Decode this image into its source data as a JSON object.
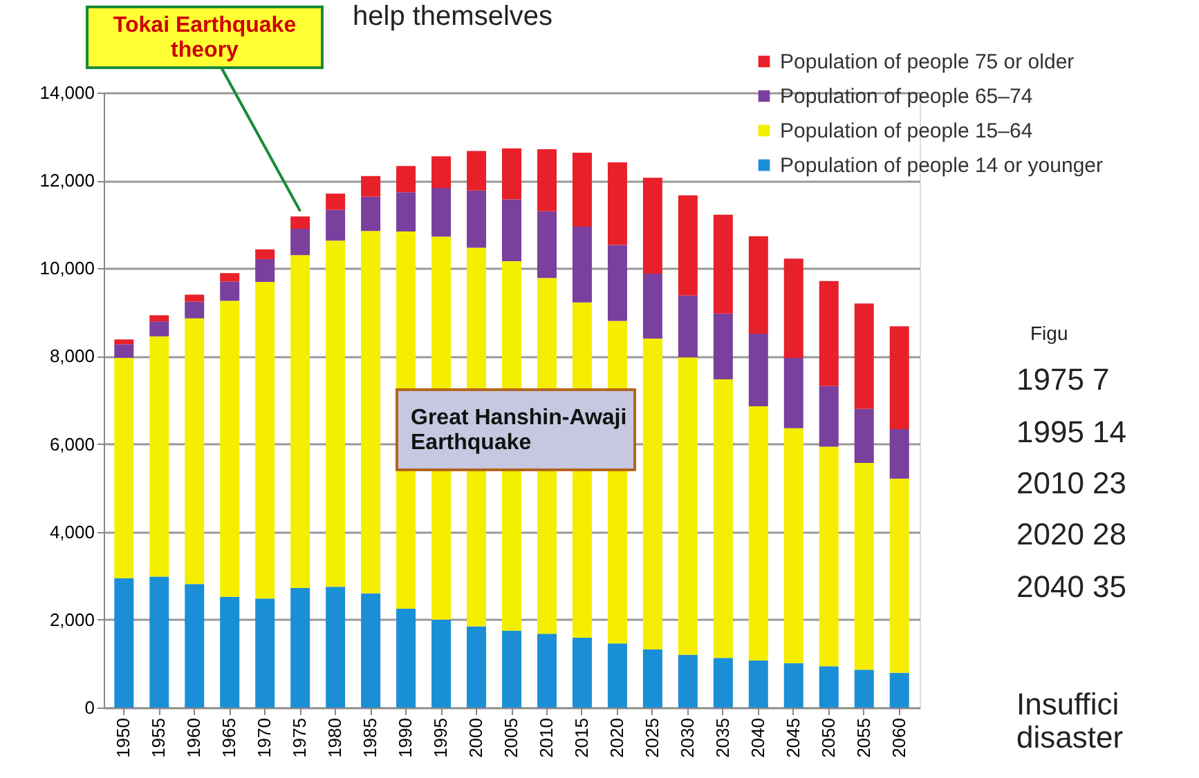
{
  "chart_data": {
    "type": "bar",
    "stacked": true,
    "title": "help themselves",
    "categories": [
      "1950",
      "1955",
      "1960",
      "1965",
      "1970",
      "1975",
      "1980",
      "1985",
      "1990",
      "1995",
      "2000",
      "2005",
      "2010",
      "2015",
      "2020",
      "2025",
      "2030",
      "2035",
      "2040",
      "2045",
      "2050",
      "2055",
      "2060"
    ],
    "series": [
      {
        "name": "Population of people 14 or younger",
        "color": "#1a8fd8",
        "values": [
          2940,
          2980,
          2810,
          2520,
          2480,
          2720,
          2750,
          2600,
          2250,
          2000,
          1850,
          1750,
          1680,
          1590,
          1460,
          1320,
          1200,
          1130,
          1070,
          1010,
          940,
          860,
          790
        ]
      },
      {
        "name": "Population of people 15–64",
        "color": "#f5ee00",
        "values": [
          5020,
          5470,
          6050,
          6740,
          7210,
          7580,
          7880,
          8250,
          8590,
          8720,
          8620,
          8410,
          8100,
          7630,
          7340,
          7080,
          6770,
          6340,
          5790,
          5350,
          5000,
          4710,
          4420
        ]
      },
      {
        "name": "Population of people 65–74",
        "color": "#7b3f9e",
        "values": [
          310,
          340,
          380,
          440,
          520,
          600,
          700,
          780,
          890,
          1110,
          1300,
          1410,
          1520,
          1730,
          1730,
          1480,
          1410,
          1500,
          1650,
          1600,
          1380,
          1230,
          1130
        ]
      },
      {
        "name": "Population of people 75 or older",
        "color": "#e8202a",
        "values": [
          110,
          140,
          160,
          190,
          220,
          280,
          370,
          470,
          600,
          720,
          900,
          1160,
          1410,
          1680,
          1880,
          2180,
          2280,
          2250,
          2220,
          2260,
          2390,
          2400,
          2340
        ]
      }
    ],
    "ylim": [
      0,
      14000
    ],
    "yticks": [
      0,
      {
        "value": 2000,
        "label": "2,000"
      },
      {
        "value": 4000,
        "label": "4,000"
      },
      {
        "value": 6000,
        "label": "6,000"
      },
      {
        "value": 8000,
        "label": "8,000"
      },
      {
        "value": 10000,
        "label": "10,000"
      },
      {
        "value": 12000,
        "label": "12,000"
      },
      {
        "value": 14000,
        "label": "14,000"
      }
    ],
    "grid": "y",
    "legend": "top right",
    "annotations": [
      {
        "text": "Tokai Earthquake\ntheory",
        "x": "1975",
        "y": 11300
      },
      "Great Hanshin-Awaji\nEarthquake",
      "Figu",
      "1975   7",
      "1995   14",
      "2010   23",
      "2020   28",
      "2040   35",
      "Insuffici\ndisaster"
    ]
  }
}
